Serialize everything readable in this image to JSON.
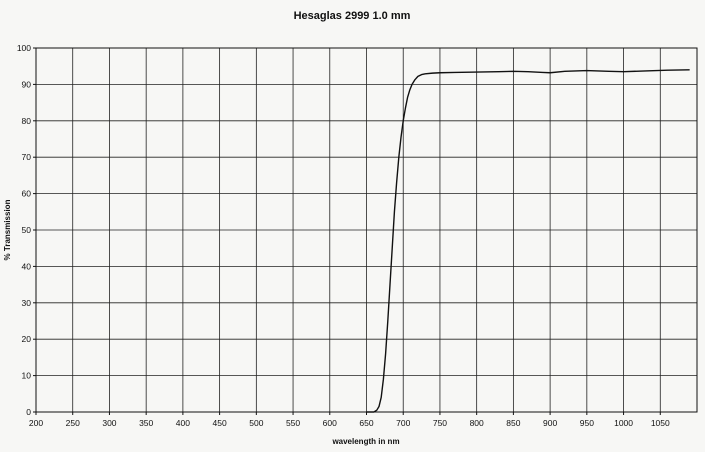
{
  "chart_data": {
    "type": "line",
    "title": "Hesaglas 2999 1.0 mm",
    "xlabel": "wavelength in nm",
    "ylabel": "% Transmission",
    "xlim": [
      200,
      1100
    ],
    "ylim": [
      0,
      100
    ],
    "x_ticks": [
      200,
      250,
      300,
      350,
      400,
      450,
      500,
      550,
      600,
      650,
      700,
      750,
      800,
      850,
      900,
      950,
      1000,
      1050
    ],
    "y_ticks": [
      0,
      10,
      20,
      30,
      40,
      50,
      60,
      70,
      80,
      90,
      100
    ],
    "grid": true,
    "line_color": "#111111",
    "series": [
      {
        "x": [
          650,
          655,
          660,
          664,
          667,
          670,
          673,
          676,
          679,
          682,
          685,
          688,
          691,
          694,
          697,
          700,
          703,
          706,
          709,
          712,
          716,
          720,
          725,
          730,
          740,
          750,
          770,
          800,
          830,
          850,
          870,
          890,
          900,
          920,
          950,
          980,
          1000,
          1030,
          1060,
          1090
        ],
        "y": [
          0,
          0,
          0,
          0.5,
          1.5,
          4,
          9,
          16,
          25,
          35,
          45,
          55,
          63,
          70,
          75.5,
          80,
          83.5,
          86.5,
          88.5,
          90,
          91.3,
          92.2,
          92.7,
          92.9,
          93.1,
          93.2,
          93.3,
          93.4,
          93.5,
          93.6,
          93.5,
          93.3,
          93.2,
          93.6,
          93.8,
          93.6,
          93.5,
          93.7,
          93.9,
          94
        ]
      }
    ]
  }
}
